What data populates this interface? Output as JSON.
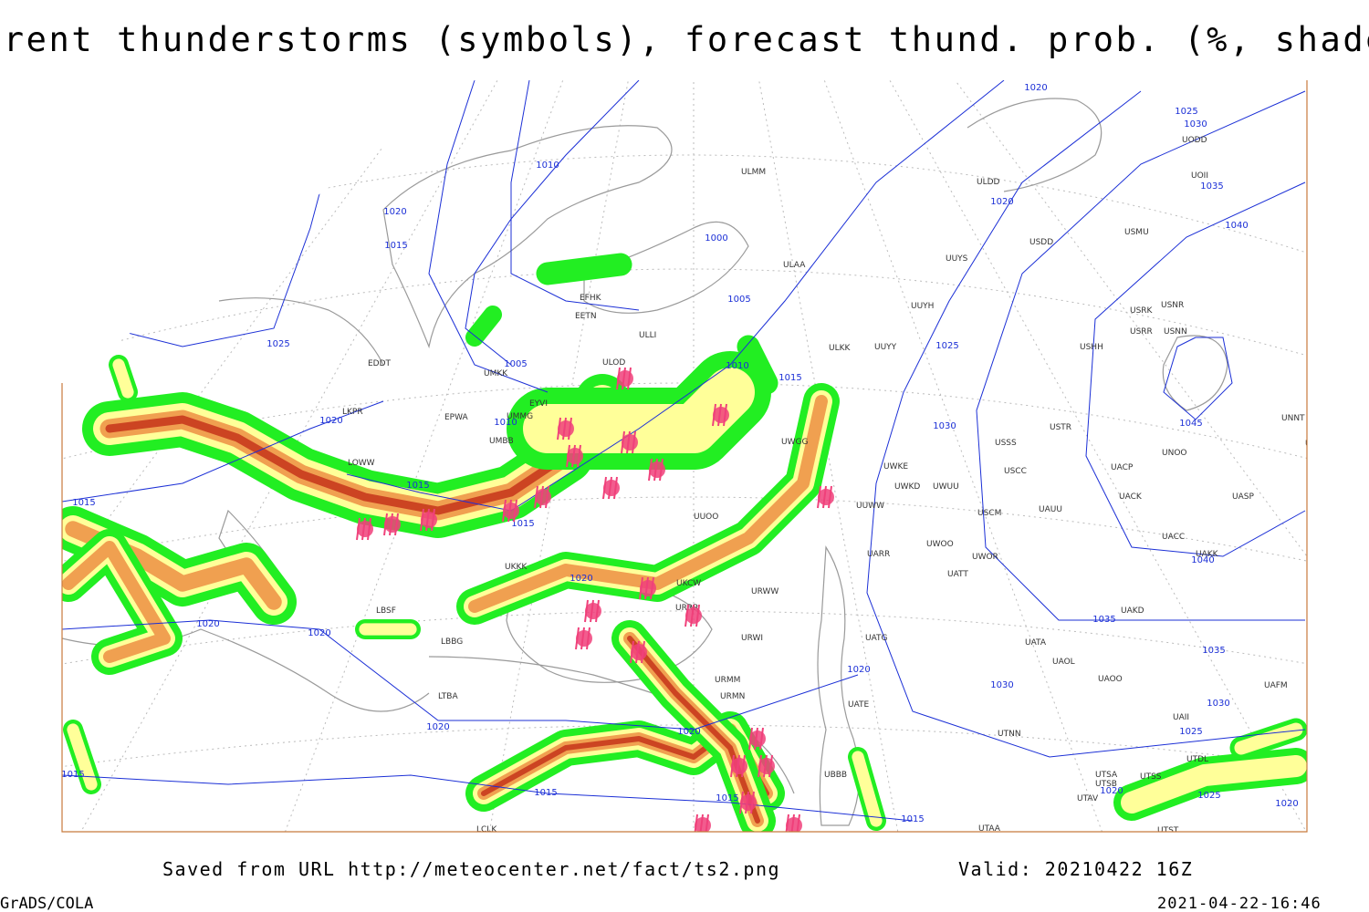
{
  "header": {
    "title": "Current thunderstorms (symbols), forecast thund. prob. (%, shaded)"
  },
  "map": {
    "isobar_labels": [
      1020,
      1025,
      1030,
      1035,
      1040,
      1045,
      1040,
      1035,
      1035,
      1030,
      1030,
      1025,
      1025,
      1020,
      1020,
      1015,
      1020,
      1015,
      1015,
      1020,
      1020,
      1020,
      1020,
      1015,
      1015,
      1020,
      1025,
      1015,
      1020,
      1010,
      1000,
      1005,
      1005,
      1010,
      1015,
      1010,
      1015,
      1015,
      1020,
      1025,
      1030,
      1020
    ],
    "station_labels": [
      "ULMM",
      "ULDD",
      "UODD",
      "UOII",
      "ULAA",
      "USDD",
      "USMU",
      "UUYS",
      "EFHK",
      "EETN",
      "UUYH",
      "USRK",
      "USNR",
      "USRR",
      "USNN",
      "USHH",
      "ULLI",
      "UUYY",
      "ULKK",
      "EDDT",
      "UMKK",
      "ULOD",
      "EYVI",
      "EPWA",
      "UMMG",
      "UMBB",
      "LKPR",
      "USSS",
      "USTR",
      "UNOO",
      "UNNT",
      "UNBB",
      "USCC",
      "LOWW",
      "UWKE",
      "UWKD",
      "UWUU",
      "UACP",
      "UACK",
      "UASP",
      "USCM",
      "UAUU",
      "UUWW",
      "UWGG",
      "UUOO",
      "UACC",
      "UARR",
      "UWOO",
      "UWOR",
      "UAKK",
      "UATT",
      "URWW",
      "UKCW",
      "UKKK",
      "LBSF",
      "URRR",
      "UAKD",
      "UATG",
      "URWI",
      "LBBG",
      "UATA",
      "UAOL",
      "UAOO",
      "UAFM",
      "URMM",
      "URMN",
      "LTBA",
      "UATE",
      "UTNN",
      "UAII",
      "UBBB",
      "UTDL",
      "UTSA",
      "UTSS",
      "UTSB",
      "UTAV",
      "UTST",
      "UTAA",
      "LCLK"
    ]
  },
  "footer": {
    "source": "Saved from URL http://meteocenter.net/fact/ts2.png",
    "valid": "Valid: 20210422 16Z",
    "software": "GrADS/COLA",
    "timestamp": "2021-04-22-16:46"
  }
}
